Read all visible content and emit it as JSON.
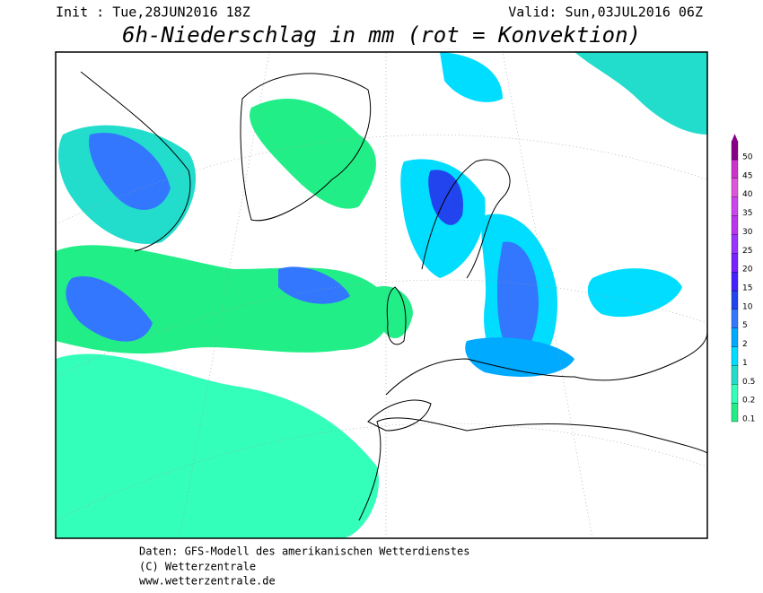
{
  "header": {
    "init": "Init : Tue,28JUN2016 18Z",
    "valid": "Valid: Sun,03JUL2016 06Z",
    "title": "6h-Niederschlag in mm (rot = Konvektion)"
  },
  "legend": {
    "levels": [
      0.1,
      0.2,
      0.5,
      1,
      2,
      5,
      10,
      15,
      20,
      25,
      30,
      35,
      40,
      45,
      50
    ],
    "colors": [
      "#22ee88",
      "#33ffbb",
      "#22ddcc",
      "#00ddff",
      "#00aaff",
      "#3377ff",
      "#2244ee",
      "#4422ff",
      "#7722ff",
      "#9933ff",
      "#bb33ee",
      "#cc44ee",
      "#dd55dd",
      "#cc33cc",
      "#880088"
    ]
  },
  "footer": {
    "line1": "Daten: GFS-Modell des amerikanischen Wetterdienstes",
    "line2": "(C) Wetterzentrale",
    "line3": "www.wetterzentrale.de"
  }
}
